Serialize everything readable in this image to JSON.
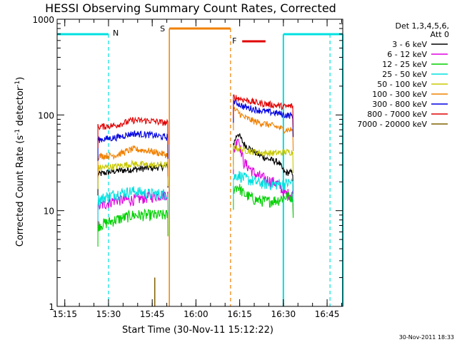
{
  "chart_data": {
    "type": "line",
    "title": "HESSI Observing Summary Count Rates, Corrected",
    "xlabel": "Start Time (30-Nov-11 15:12:22)",
    "ylabel": "Corrected Count Rate (s⁻¹ detector⁻¹)",
    "ylabel_main": "Corrected Count Rate (s",
    "ylabel_sup1": "-1",
    "ylabel_mid": " detector",
    "ylabel_sup2": "-1",
    "ylabel_end": ")",
    "yscale": "log",
    "x_units": "minutes since 15:12:22",
    "xlim": [
      0,
      98
    ],
    "ylim": [
      1,
      1000
    ],
    "x_ticks": [
      {
        "t": 2.63,
        "label": "15:15"
      },
      {
        "t": 17.63,
        "label": "15:30"
      },
      {
        "t": 32.63,
        "label": "15:45"
      },
      {
        "t": 47.63,
        "label": "16:00"
      },
      {
        "t": 62.63,
        "label": "16:15"
      },
      {
        "t": 77.63,
        "label": "16:30"
      },
      {
        "t": 92.63,
        "label": "16:45"
      }
    ],
    "y_ticks": [
      {
        "v": 1,
        "label": "1"
      },
      {
        "v": 10,
        "label": "10"
      },
      {
        "v": 100,
        "label": "100"
      },
      {
        "v": 1000,
        "label": "1000"
      }
    ],
    "legend_header": [
      "Det 1,3,4,5,6,",
      "Att 0"
    ],
    "segments": [
      [
        14,
        38
      ],
      [
        60.5,
        81
      ]
    ],
    "series": [
      {
        "name": "3 - 6 keV",
        "color": "#000000",
        "seg1": [
          [
            14,
            24
          ],
          [
            20,
            26
          ],
          [
            26,
            27
          ],
          [
            32,
            28
          ],
          [
            38,
            29
          ]
        ],
        "seg2": [
          [
            60.5,
            50
          ],
          [
            62,
            65
          ],
          [
            64,
            50
          ],
          [
            66,
            45
          ],
          [
            68,
            40
          ],
          [
            72,
            35
          ],
          [
            76,
            32
          ],
          [
            78,
            25
          ],
          [
            81,
            25
          ]
        ]
      },
      {
        "name": "6 - 12 keV",
        "color": "#e000e0",
        "seg1": [
          [
            14,
            11
          ],
          [
            20,
            13
          ],
          [
            26,
            13
          ],
          [
            32,
            14
          ],
          [
            38,
            15
          ]
        ],
        "seg2": [
          [
            60.5,
            40
          ],
          [
            62,
            60
          ],
          [
            64,
            32
          ],
          [
            66,
            28
          ],
          [
            68,
            24
          ],
          [
            72,
            21
          ],
          [
            76,
            19
          ],
          [
            78,
            15
          ],
          [
            81,
            15
          ]
        ]
      },
      {
        "name": "12 - 25 keV",
        "color": "#00d000",
        "seg1": [
          [
            14,
            7
          ],
          [
            20,
            8
          ],
          [
            26,
            9
          ],
          [
            32,
            9
          ],
          [
            38,
            9
          ]
        ],
        "seg2": [
          [
            60.5,
            17
          ],
          [
            62,
            18
          ],
          [
            64,
            15
          ],
          [
            66,
            14
          ],
          [
            68,
            13
          ],
          [
            72,
            12.5
          ],
          [
            76,
            13
          ],
          [
            78,
            14
          ],
          [
            81,
            14
          ]
        ]
      },
      {
        "name": "25 - 50 keV",
        "color": "#00e0e0",
        "seg1": [
          [
            14,
            13
          ],
          [
            20,
            15
          ],
          [
            26,
            16
          ],
          [
            32,
            15
          ],
          [
            38,
            15
          ]
        ],
        "seg2": [
          [
            60.5,
            22
          ],
          [
            62,
            24
          ],
          [
            64,
            22
          ],
          [
            66,
            21
          ],
          [
            68,
            20
          ],
          [
            72,
            19
          ],
          [
            76,
            19
          ],
          [
            78,
            19
          ],
          [
            81,
            20
          ]
        ]
      },
      {
        "name": "50 - 100 keV",
        "color": "#c8c800",
        "seg1": [
          [
            14,
            28
          ],
          [
            20,
            29
          ],
          [
            26,
            31
          ],
          [
            32,
            30
          ],
          [
            38,
            30
          ]
        ],
        "seg2": [
          [
            60.5,
            45
          ],
          [
            62,
            45
          ],
          [
            64,
            43
          ],
          [
            66,
            42
          ],
          [
            68,
            41
          ],
          [
            72,
            40
          ],
          [
            76,
            40
          ],
          [
            78,
            41
          ],
          [
            81,
            41
          ]
        ]
      },
      {
        "name": "100 - 300 keV",
        "color": "#f08000",
        "seg1": [
          [
            14,
            37
          ],
          [
            20,
            38
          ],
          [
            26,
            44
          ],
          [
            32,
            42
          ],
          [
            38,
            38
          ]
        ],
        "seg2": [
          [
            60.5,
            115
          ],
          [
            62,
            108
          ],
          [
            64,
            95
          ],
          [
            66,
            90
          ],
          [
            68,
            85
          ],
          [
            72,
            80
          ],
          [
            76,
            74
          ],
          [
            78,
            70
          ],
          [
            81,
            70
          ]
        ]
      },
      {
        "name": "300 - 800 keV",
        "color": "#0000e0",
        "seg1": [
          [
            14,
            55
          ],
          [
            20,
            58
          ],
          [
            26,
            64
          ],
          [
            32,
            62
          ],
          [
            38,
            58
          ]
        ],
        "seg2": [
          [
            60.5,
            138
          ],
          [
            62,
            132
          ],
          [
            64,
            122
          ],
          [
            66,
            118
          ],
          [
            68,
            114
          ],
          [
            72,
            108
          ],
          [
            76,
            104
          ],
          [
            78,
            100
          ],
          [
            81,
            98
          ]
        ]
      },
      {
        "name": "800 - 7000 keV",
        "color": "#e00000",
        "seg1": [
          [
            14,
            75
          ],
          [
            20,
            78
          ],
          [
            26,
            88
          ],
          [
            32,
            87
          ],
          [
            38,
            82
          ]
        ],
        "seg2": [
          [
            60.5,
            155
          ],
          [
            62,
            150
          ],
          [
            64,
            145
          ],
          [
            66,
            140
          ],
          [
            68,
            135
          ],
          [
            72,
            130
          ],
          [
            76,
            125
          ],
          [
            78,
            122
          ],
          [
            81,
            124
          ]
        ]
      },
      {
        "name": "7000 - 20000 keV",
        "color": "#806000",
        "seg1": [],
        "seg2": []
      }
    ],
    "events": [
      {
        "type": "night",
        "label": "N",
        "color": "#00e0e0",
        "t_start": 17.63,
        "t_end": 77.63
      },
      {
        "type": "night",
        "label": "N",
        "color": "#00e0e0",
        "t_start": 93.63,
        "t_end": 98
      },
      {
        "type": "saa",
        "label": "S",
        "color": "#f08000",
        "t_start": 38.5,
        "t_end": 59.5
      },
      {
        "type": "flare",
        "label": "F",
        "color": "#e00000",
        "t_start": 63.5,
        "t_end": 71.5
      }
    ],
    "timestamp": "30-Nov-2011 18:33"
  }
}
